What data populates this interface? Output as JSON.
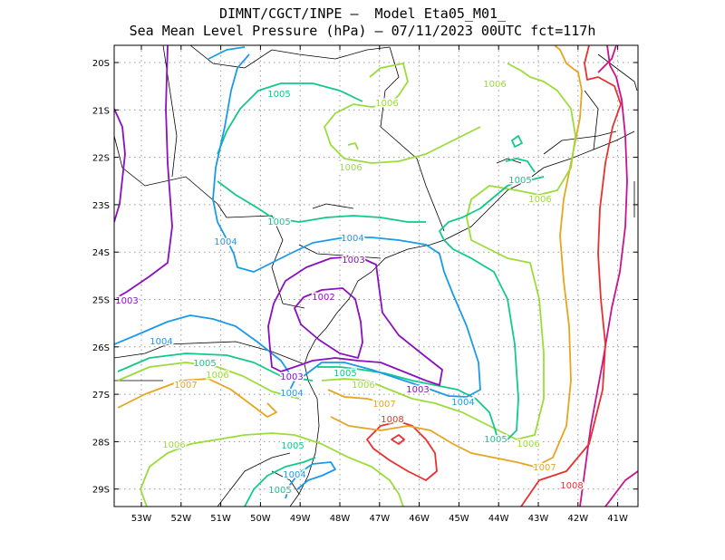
{
  "header": {
    "title_line1": "DIMNT/CGCT/INPE –  Model Eta05_M01_",
    "title_line2": "Sea Mean Level Pressure (hPa) – 07/11/2023 00UTC fct=117h"
  },
  "map": {
    "lat_ticks": [
      "20S",
      "21S",
      "22S",
      "23S",
      "24S",
      "25S",
      "26S",
      "27S",
      "28S",
      "29S"
    ],
    "lon_ticks": [
      "53W",
      "52W",
      "51W",
      "50W",
      "49W",
      "48W",
      "47W",
      "46W",
      "45W",
      "44W",
      "43W",
      "42W",
      "41W"
    ],
    "colors": {
      "1002": "#8b0fbf",
      "1003": "#8b0fbf",
      "1004": "#1a9be8",
      "1005": "#10c98a",
      "1006": "#9bdc3a",
      "1007": "#e6a520",
      "1008": "#e83030",
      "1009": "#c8148c",
      "coast": "#000000",
      "grid": "#999999"
    },
    "contour_labels": [
      {
        "text": "1002",
        "level": "1002"
      },
      {
        "text": "1003",
        "level": "1003"
      },
      {
        "text": "1003",
        "level": "1003"
      },
      {
        "text": "1003",
        "level": "1003"
      },
      {
        "text": "1003",
        "level": "1003"
      },
      {
        "text": "1004",
        "level": "1004"
      },
      {
        "text": "1004",
        "level": "1004"
      },
      {
        "text": "1004",
        "level": "1004"
      },
      {
        "text": "1004",
        "level": "1004"
      },
      {
        "text": "1004",
        "level": "1004"
      },
      {
        "text": "1004",
        "level": "1004"
      },
      {
        "text": "1005",
        "level": "1005"
      },
      {
        "text": "1005",
        "level": "1005"
      },
      {
        "text": "1005",
        "level": "1005"
      },
      {
        "text": "1005",
        "level": "1005"
      },
      {
        "text": "1005",
        "level": "1005"
      },
      {
        "text": "1005",
        "level": "1005"
      },
      {
        "text": "1005",
        "level": "1005"
      },
      {
        "text": "1005",
        "level": "1005"
      },
      {
        "text": "1006",
        "level": "1006"
      },
      {
        "text": "1006",
        "level": "1006"
      },
      {
        "text": "1006",
        "level": "1006"
      },
      {
        "text": "1006",
        "level": "1006"
      },
      {
        "text": "1006",
        "level": "1006"
      },
      {
        "text": "1006",
        "level": "1006"
      },
      {
        "text": "1006",
        "level": "1006"
      },
      {
        "text": "1006",
        "level": "1006"
      },
      {
        "text": "1007",
        "level": "1007"
      },
      {
        "text": "1007",
        "level": "1007"
      },
      {
        "text": "1007",
        "level": "1007"
      },
      {
        "text": "1008",
        "level": "1008"
      },
      {
        "text": "1008",
        "level": "1008"
      }
    ]
  }
}
